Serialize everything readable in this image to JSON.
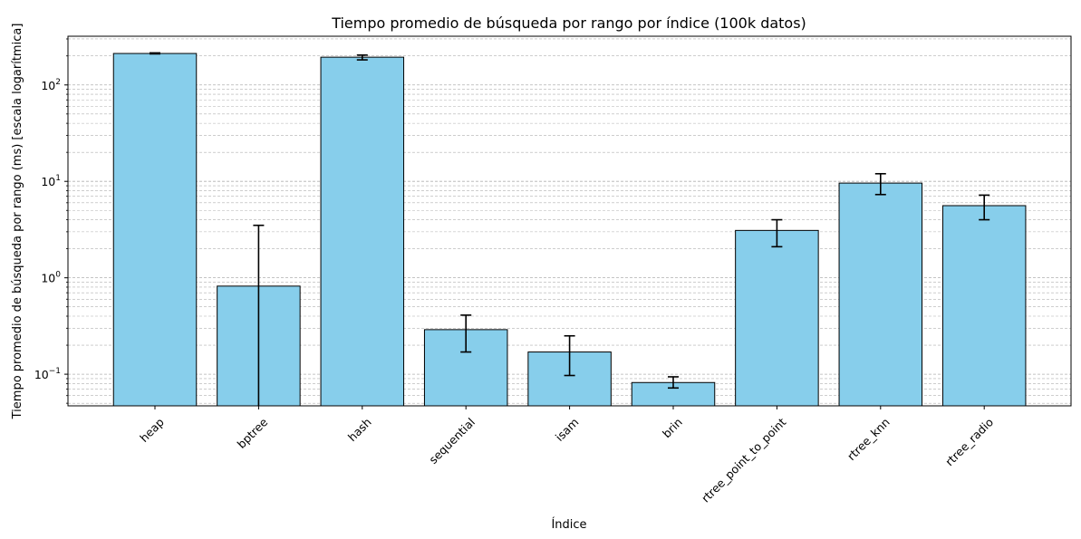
{
  "chart_data": {
    "type": "bar",
    "title": "Tiempo promedio de búsqueda por rango por índice (100k datos)",
    "xlabel": "Índice",
    "ylabel": "Tiempo promedio de búsqueda por rango (ms) [escala logarítmica]",
    "yscale": "log",
    "ylim": [
      0.047,
      320
    ],
    "y_ticks": [
      {
        "value": 0.1,
        "base": "10",
        "exp": "−1"
      },
      {
        "value": 1,
        "base": "10",
        "exp": "0"
      },
      {
        "value": 10,
        "base": "10",
        "exp": "1"
      },
      {
        "value": 100,
        "base": "10",
        "exp": "2"
      }
    ],
    "grid": "y (major and minor, dashed)",
    "categories": [
      "heap",
      "bptree",
      "hash",
      "sequential",
      "isam",
      "brin",
      "rtree_point_to_point",
      "rtree_knn",
      "rtree_radio"
    ],
    "values": [
      212,
      0.82,
      194,
      0.29,
      0.17,
      0.082,
      3.1,
      9.6,
      5.6
    ],
    "error_low": [
      210,
      0.04,
      182,
      0.17,
      0.097,
      0.072,
      2.1,
      7.3,
      4.0
    ],
    "error_high": [
      215,
      3.5,
      204,
      0.41,
      0.25,
      0.094,
      4.0,
      12.0,
      7.2
    ],
    "colors": {
      "bar_fill": "#87ceeb",
      "bar_edge": "#000000",
      "grid": "#b0b0b0"
    }
  }
}
